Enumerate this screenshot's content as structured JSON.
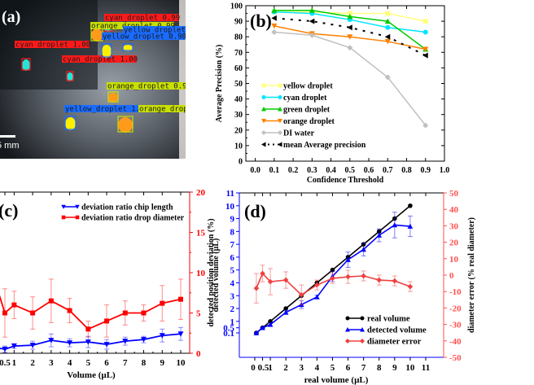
{
  "panel_a": {
    "label": "(a)",
    "scale_bar_label": "5 mm",
    "detections": [
      {
        "label": "cyan_droplet 1.00",
        "class": "cyan",
        "box_color": "#ff1a1a"
      },
      {
        "label": "cyan_droplet 1.00",
        "class": "cyan",
        "box_color": "#ff1a1a"
      },
      {
        "label": "cyan_droplet 0.99",
        "class": "cyan",
        "box_color": "#ff1a1a"
      },
      {
        "label": "orange_droplet 0.99",
        "class": "orange",
        "box_color": "#c8e000"
      },
      {
        "label": "yellow_droplet 0.98",
        "class": "yellow",
        "box_color": "#1a6cff"
      },
      {
        "label": "yellow_droplet 0.9",
        "class": "yellow",
        "box_color": "#1a6cff"
      },
      {
        "label": "orange_droplet 0.99",
        "class": "orange",
        "box_color": "#c8e000"
      },
      {
        "label": "yellow_droplet 1.00",
        "class": "yellow",
        "box_color": "#1a6cff"
      },
      {
        "label": "orange_droplet 0.98",
        "class": "orange",
        "box_color": "#c8e000"
      }
    ]
  },
  "chart_data": [
    {
      "panel": "(b)",
      "type": "line",
      "title": "",
      "xlabel": "Confidence Threshold",
      "ylabel": "Average Precision (%)",
      "xlim": [
        -0.05,
        1.0
      ],
      "ylim": [
        0,
        100
      ],
      "xticks": [
        "0.0",
        "0.1",
        "0.2",
        "0.3",
        "0.4",
        "0.5",
        "0.6",
        "0.7",
        "0.8",
        "0.9",
        "1.0"
      ],
      "yticks": [
        "0",
        "10",
        "20",
        "30",
        "40",
        "50",
        "60",
        "70",
        "80",
        "90",
        "100"
      ],
      "legend_position": "center-left",
      "x": [
        0.1,
        0.3,
        0.5,
        0.7,
        0.9
      ],
      "series": [
        {
          "name": "yellow droplet",
          "color": "#ffff80",
          "marker": "square",
          "values": [
            96,
            96,
            95,
            95,
            90
          ]
        },
        {
          "name": "cyan droplet",
          "color": "#00e5ff",
          "marker": "circle",
          "values": [
            96,
            95,
            91,
            86,
            83
          ]
        },
        {
          "name": "green droplet",
          "color": "#00cc00",
          "marker": "triangle-up",
          "values": [
            97,
            97,
            93,
            90,
            72
          ]
        },
        {
          "name": "orange droplet",
          "color": "#ff8000",
          "marker": "triangle-down",
          "values": [
            87,
            82,
            80,
            77,
            72
          ]
        },
        {
          "name": "DI water",
          "color": "#c0c0c0",
          "marker": "diamond",
          "values": [
            83,
            81,
            73,
            54,
            23
          ]
        },
        {
          "name": "mean Average precision",
          "color": "#000000",
          "marker": "triangle-left",
          "dashed": true,
          "values": [
            92,
            90,
            86,
            80,
            68
          ]
        }
      ]
    },
    {
      "panel": "(c)",
      "type": "line",
      "xlabel": "Volume (µL)",
      "ylabel_right": "detected position deviation (%)",
      "ylim_right": [
        0,
        20
      ],
      "yticks_right": [
        "0",
        "5",
        "10",
        "15",
        "20"
      ],
      "xtick_labels": [
        "0.5",
        "1",
        "2",
        "3",
        "4",
        "5",
        "6",
        "7",
        "8",
        "9",
        "10"
      ],
      "legend_position": "top-right",
      "x": [
        0.1,
        0.5,
        1,
        2,
        3,
        4,
        5,
        6,
        7,
        8,
        9,
        10
      ],
      "series": [
        {
          "name": "deviation ratio chip length",
          "color": "#0000ff",
          "marker": "triangle-down",
          "values": [
            0.8,
            0.5,
            0.9,
            1.0,
            1.6,
            1.3,
            1.4,
            1.1,
            1.5,
            1.7,
            2.2,
            2.4
          ],
          "errors": [
            0.4,
            0.4,
            0.3,
            0.5,
            0.8,
            0.5,
            0.7,
            0.6,
            0.5,
            0.4,
            0.8,
            0.8
          ]
        },
        {
          "name": "deviation ratio drop diameter",
          "color": "#ff0000",
          "marker": "square",
          "values": [
            10.5,
            5.0,
            6.0,
            5.0,
            6.5,
            5.3,
            3.0,
            4.0,
            5.0,
            5.0,
            6.2,
            6.7
          ],
          "errors": [
            2.5,
            3.0,
            1.7,
            2.0,
            2.7,
            1.5,
            1.0,
            2.0,
            1.5,
            1.0,
            2.2,
            2.5
          ]
        }
      ]
    },
    {
      "panel": "(d)",
      "type": "line",
      "xlabel": "real volume (µL)",
      "ylabel_left": "detected volume (µL)",
      "ylabel_right": "diameter error (% real diameter)",
      "xlim": [
        -0.5,
        11.5
      ],
      "ylim_left": [
        -1.8,
        11
      ],
      "ylim_right": [
        -50,
        50
      ],
      "xtick_labels": [
        "0",
        "0.5",
        "1",
        "2",
        "3",
        "4",
        "5",
        "6",
        "7",
        "8",
        "9",
        "10",
        "11"
      ],
      "yticks_left": [
        "0.1",
        "0.5",
        "1",
        "2",
        "3",
        "4",
        "5",
        "6",
        "7",
        "8",
        "9",
        "10",
        "11"
      ],
      "yticks_right": [
        "-50",
        "-40",
        "-30",
        "-20",
        "-10",
        "0",
        "10",
        "20",
        "30",
        "40",
        "50"
      ],
      "legend_position": "bottom-right",
      "x": [
        0.1,
        0.5,
        1,
        2,
        3,
        4,
        5,
        6,
        7,
        8,
        9,
        10
      ],
      "series": [
        {
          "name": "real volume",
          "color": "#000000",
          "marker": "circle",
          "axis": "left",
          "values": [
            0.1,
            0.5,
            1,
            2,
            3,
            4,
            5,
            6,
            7,
            8,
            9,
            10
          ]
        },
        {
          "name": "detected volume",
          "color": "#0000ff",
          "marker": "triangle-up",
          "axis": "left",
          "values": [
            0.1,
            0.5,
            0.75,
            1.7,
            2.3,
            2.9,
            4.5,
            5.8,
            6.6,
            7.7,
            8.5,
            8.4
          ],
          "errors": [
            0.05,
            0.05,
            0.15,
            0.15,
            0.3,
            0.15,
            0.4,
            0.6,
            0.5,
            0.5,
            1.0,
            0.8
          ]
        },
        {
          "name": "diameter error",
          "color": "#f04040",
          "marker": "diamond",
          "axis": "right",
          "values": [
            -8,
            1,
            -4,
            -3,
            -12,
            -6,
            -2,
            -1,
            -0.5,
            -3,
            -3.5,
            -7
          ],
          "errors": [
            9,
            5,
            8,
            5,
            6,
            3,
            3,
            4,
            3,
            3,
            3,
            3
          ]
        }
      ]
    }
  ]
}
